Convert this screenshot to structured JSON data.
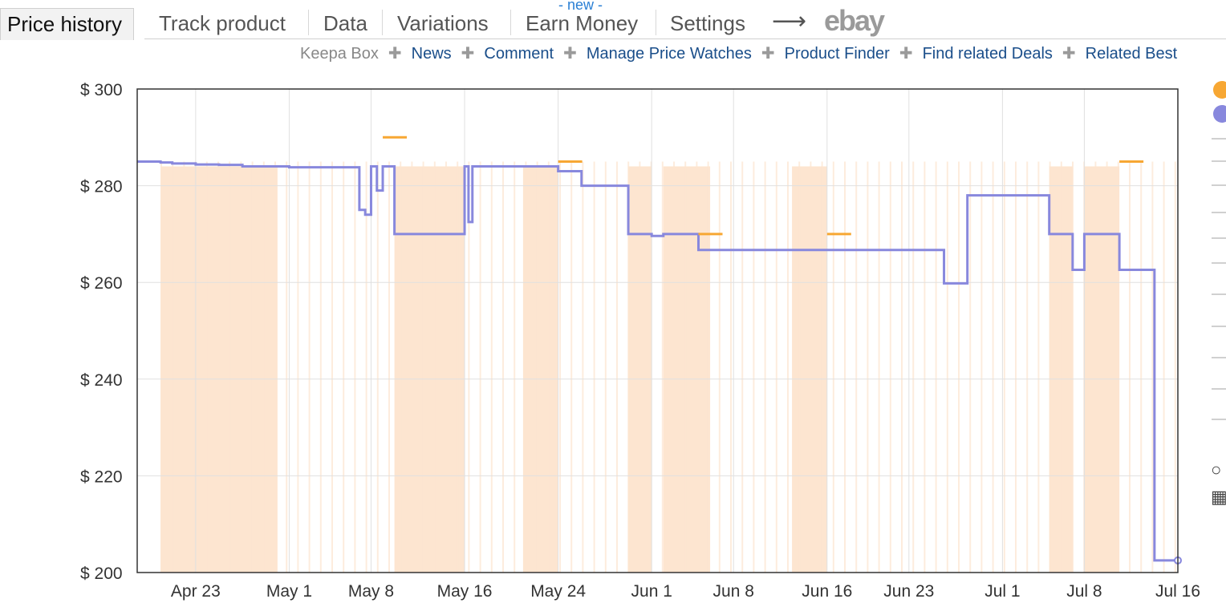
{
  "tabs": [
    {
      "label": "Price history",
      "active": true
    },
    {
      "label": "Track product"
    },
    {
      "label": "Data"
    },
    {
      "label": "Variations"
    },
    {
      "label": "Earn Money",
      "badge": "- new -"
    },
    {
      "label": "Settings"
    }
  ],
  "arrow_glyph": "⟶",
  "ebay_label": "ebay",
  "sublinks": [
    "Keepa Box",
    "News",
    "Comment",
    "Manage Price Watches",
    "Product Finder",
    "Find related Deals",
    "Related Best"
  ],
  "colors": {
    "amazon": "#f7a733",
    "new": "#8888dd",
    "fill": "#fde5d0",
    "grid": "#e0e0e0"
  },
  "chart_data": {
    "type": "line",
    "y_ticks": [
      "$ 300",
      "$ 280",
      "$ 260",
      "$ 240",
      "$ 220",
      "$ 200"
    ],
    "ylim": [
      200,
      300
    ],
    "x_ticks": [
      "Apr 23",
      "May 1",
      "May 8",
      "May 16",
      "May 24",
      "Jun 1",
      "Jun 8",
      "Jun 16",
      "Jun 23",
      "Jul 1",
      "Jul 8",
      "Jul 16"
    ],
    "series": [
      {
        "color": "#8888dd",
        "steps": [
          [
            "Apr 18",
            285
          ],
          [
            "Apr 20",
            284.8
          ],
          [
            "Apr 21",
            284.6
          ],
          [
            "Apr 23",
            284.4
          ],
          [
            "Apr 25",
            284.3
          ],
          [
            "Apr 27",
            284
          ],
          [
            "May 1",
            283.8
          ],
          [
            "May 7",
            275
          ],
          [
            "May 7 12h",
            274
          ],
          [
            "May 8",
            284
          ],
          [
            "May 8 12h",
            279
          ],
          [
            "May 9",
            284
          ],
          [
            "May 10",
            270
          ],
          [
            "May 16",
            284
          ],
          [
            "May 16 8h",
            272.5
          ],
          [
            "May 16 16h",
            284
          ],
          [
            "May 24",
            283
          ],
          [
            "May 26",
            280
          ],
          [
            "May 30",
            270
          ],
          [
            "Jun 1",
            269.6
          ],
          [
            "Jun 2",
            270
          ],
          [
            "Jun 5",
            266.7
          ],
          [
            "Jun 26",
            259.8
          ],
          [
            "Jun 28",
            278
          ],
          [
            "Jul 5",
            270
          ],
          [
            "Jul 7",
            262.6
          ],
          [
            "Jul 8",
            270
          ],
          [
            "Jul 11",
            262.6
          ],
          [
            "Jul 14",
            202.5
          ]
        ]
      },
      {
        "color": "#f7a733",
        "segments": [
          [
            "May 9",
            290
          ],
          [
            "May 24",
            285
          ],
          [
            "Jun 5",
            270
          ],
          [
            "Jun 16",
            270
          ],
          [
            "Jul 11",
            285
          ]
        ]
      }
    ]
  }
}
